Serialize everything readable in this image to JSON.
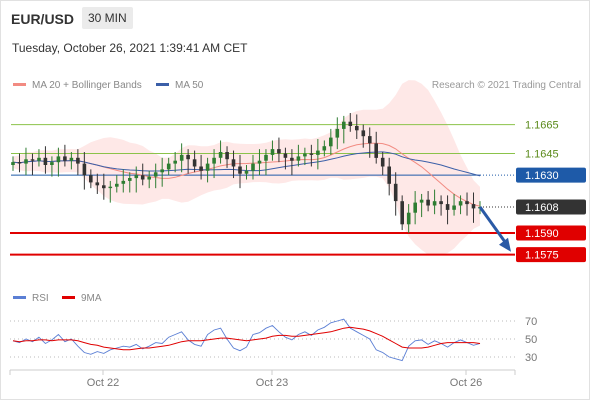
{
  "header": {
    "symbol": "EUR/USD",
    "timeframe": "30 MIN",
    "datetime": "Tuesday, October 26, 2021 1:39:41 AM CET",
    "copyright": "Research © 2021 Trading Central"
  },
  "legend": {
    "ma20_label": "MA 20 + Bollinger Bands",
    "ma50_label": "MA 50",
    "rsi_label": "RSI",
    "ma9_label": "9MA"
  },
  "colors": {
    "bullish": "#2e7d32",
    "bearish": "#333333",
    "ma20": "#f28b82",
    "ma50": "#3b5fa8",
    "support": "#e00000",
    "resistance": "#8bc34a",
    "current": "#1e5aa8",
    "bollinger_fill": "#fde0df"
  },
  "chart_data": {
    "type": "candlestick",
    "y_range": [
      1.1554,
      1.1682
    ],
    "x_labels": [
      "Oct 22",
      "Oct 23",
      "Oct 26"
    ],
    "close_series": [
      1.1639,
      1.1638,
      1.1641,
      1.164,
      1.1642,
      1.1637,
      1.1639,
      1.1643,
      1.164,
      1.1642,
      1.1638,
      1.163,
      1.1625,
      1.1623,
      1.1621,
      1.1622,
      1.1624,
      1.1626,
      1.1628,
      1.163,
      1.1627,
      1.1629,
      1.1632,
      1.1634,
      1.1638,
      1.164,
      1.1644,
      1.1641,
      1.1636,
      1.1633,
      1.1638,
      1.1642,
      1.1646,
      1.1641,
      1.1636,
      1.1631,
      1.1633,
      1.1638,
      1.164,
      1.1644,
      1.1648,
      1.1645,
      1.1642,
      1.164,
      1.1643,
      1.1645,
      1.1644,
      1.1647,
      1.165,
      1.1656,
      1.1662,
      1.1667,
      1.1664,
      1.1661,
      1.1657,
      1.1652,
      1.1642,
      1.1636,
      1.1624,
      1.1612,
      1.1596,
      1.1604,
      1.1611,
      1.1613,
      1.1609,
      1.1612,
      1.161,
      1.1606,
      1.1609,
      1.1612,
      1.161,
      1.1607,
      1.1608
    ],
    "levels": [
      {
        "label": "1.1665",
        "value": 1.1665,
        "kind": "resistance"
      },
      {
        "label": "1.1645",
        "value": 1.1645,
        "kind": "resistance"
      },
      {
        "label": "1.1630",
        "value": 1.163,
        "kind": "pivot"
      },
      {
        "label": "1.1608",
        "value": 1.1608,
        "kind": "last"
      },
      {
        "label": "1.1590",
        "value": 1.159,
        "kind": "support"
      },
      {
        "label": "1.1575",
        "value": 1.1575,
        "kind": "support"
      }
    ],
    "projection": {
      "from": 1.1608,
      "to": 1.1577,
      "direction": "down"
    },
    "rsi": {
      "levels": [
        70,
        50,
        30
      ],
      "values": [
        48,
        46,
        50,
        47,
        52,
        45,
        49,
        55,
        47,
        50,
        42,
        35,
        33,
        36,
        34,
        38,
        40,
        42,
        41,
        44,
        39,
        42,
        46,
        45,
        52,
        55,
        58,
        49,
        44,
        42,
        55,
        60,
        62,
        50,
        40,
        37,
        41,
        55,
        57,
        62,
        65,
        58,
        52,
        49,
        55,
        58,
        54,
        60,
        63,
        68,
        70,
        72,
        62,
        58,
        54,
        50,
        38,
        35,
        30,
        28,
        26,
        42,
        48,
        49,
        44,
        48,
        45,
        41,
        46,
        49,
        46,
        43,
        45
      ],
      "ma9": [
        48,
        47,
        48,
        48,
        49,
        49,
        48,
        49,
        49,
        49,
        48,
        46,
        44,
        43,
        41,
        40,
        39,
        38,
        38,
        39,
        40,
        40,
        41,
        42,
        43,
        45,
        47,
        48,
        48,
        48,
        49,
        50,
        51,
        51,
        50,
        49,
        48,
        49,
        50,
        51,
        53,
        54,
        54,
        53,
        53,
        54,
        55,
        56,
        57,
        58,
        60,
        62,
        63,
        62,
        61,
        59,
        56,
        53,
        49,
        45,
        41,
        40,
        40,
        40,
        41,
        43,
        45,
        46,
        46,
        46,
        46,
        46,
        45
      ]
    }
  }
}
